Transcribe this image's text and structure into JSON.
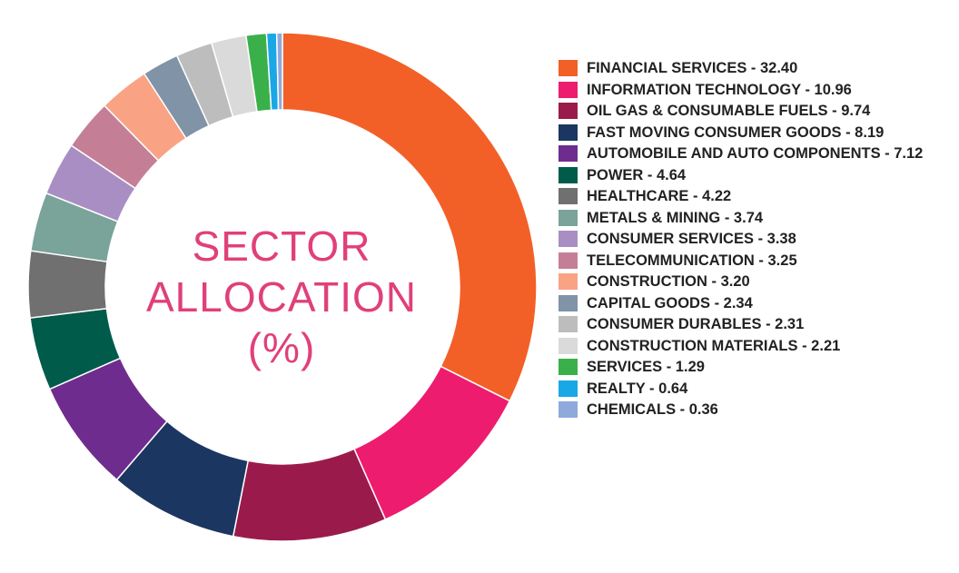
{
  "chart_data": {
    "type": "pie",
    "donut": true,
    "title": "SECTOR\nALLOCATION\n(%)",
    "legend_position": "right",
    "categories": [
      "FINANCIAL SERVICES",
      "INFORMATION TECHNOLOGY",
      "OIL GAS & CONSUMABLE FUELS",
      "FAST MOVING CONSUMER GOODS",
      "AUTOMOBILE AND AUTO COMPONENTS",
      "POWER",
      "HEALTHCARE",
      "METALS & MINING",
      "CONSUMER SERVICES",
      "TELECOMMUNICATION",
      "CONSTRUCTION",
      "CAPITAL GOODS",
      "CONSUMER DURABLES",
      "CONSTRUCTION MATERIALS",
      "SERVICES",
      "REALTY",
      "CHEMICALS"
    ],
    "values": [
      32.4,
      10.96,
      9.74,
      8.19,
      7.12,
      4.64,
      4.22,
      3.74,
      3.38,
      3.25,
      3.2,
      2.34,
      2.31,
      2.21,
      1.29,
      0.64,
      0.36
    ],
    "colors": [
      "#f26028",
      "#ee1c6e",
      "#9a1b4b",
      "#1b3660",
      "#6f2c8f",
      "#005b4b",
      "#707070",
      "#7aa39a",
      "#a98ec3",
      "#c47f96",
      "#f9a384",
      "#8093a7",
      "#bdbdbd",
      "#dadada",
      "#3ab04a",
      "#1aa7e6",
      "#8fa9dc"
    ],
    "legend_labels": [
      "FINANCIAL SERVICES - 32.40",
      "INFORMATION TECHNOLOGY - 10.96",
      "OIL GAS & CONSUMABLE FUELS - 9.74",
      "FAST MOVING CONSUMER GOODS - 8.19",
      "AUTOMOBILE AND AUTO COMPONENTS - 7.12",
      "POWER - 4.64",
      "HEALTHCARE - 4.22",
      "METALS & MINING - 3.74",
      "CONSUMER SERVICES - 3.38",
      "TELECOMMUNICATION - 3.25",
      "CONSTRUCTION - 3.20",
      "CAPITAL GOODS - 2.34",
      "CONSUMER DURABLES - 2.31",
      "CONSTRUCTION MATERIALS - 2.21",
      "SERVICES - 1.29",
      "REALTY - 0.64",
      "CHEMICALS - 0.36"
    ]
  }
}
